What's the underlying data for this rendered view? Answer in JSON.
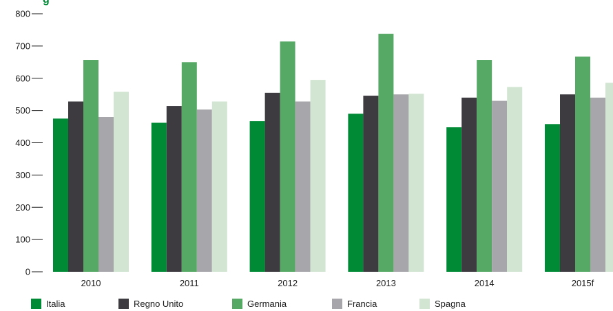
{
  "chart_data": {
    "type": "bar",
    "title": "",
    "xlabel": "",
    "ylabel": "",
    "ylim": [
      0,
      800
    ],
    "yticks": [
      0,
      100,
      200,
      300,
      400,
      500,
      600,
      700,
      800
    ],
    "grid": false,
    "legend_position": "bottom",
    "categories": [
      "2010",
      "2011",
      "2012",
      "2013",
      "2014",
      "2015f"
    ],
    "series": [
      {
        "name": "Italia",
        "color": "#008a36",
        "values": [
          475,
          462,
          467,
          490,
          448,
          458
        ]
      },
      {
        "name": "Regno Unito",
        "color": "#3d3b40",
        "values": [
          528,
          514,
          555,
          546,
          540,
          550
        ]
      },
      {
        "name": "Germania",
        "color": "#56a865",
        "values": [
          657,
          650,
          714,
          738,
          657,
          667
        ]
      },
      {
        "name": "Francia",
        "color": "#a7a7ab",
        "values": [
          480,
          503,
          528,
          550,
          530,
          540
        ]
      },
      {
        "name": "Spagna",
        "color": "#d2e5d2",
        "values": [
          558,
          528,
          595,
          552,
          573,
          586
        ]
      }
    ]
  }
}
